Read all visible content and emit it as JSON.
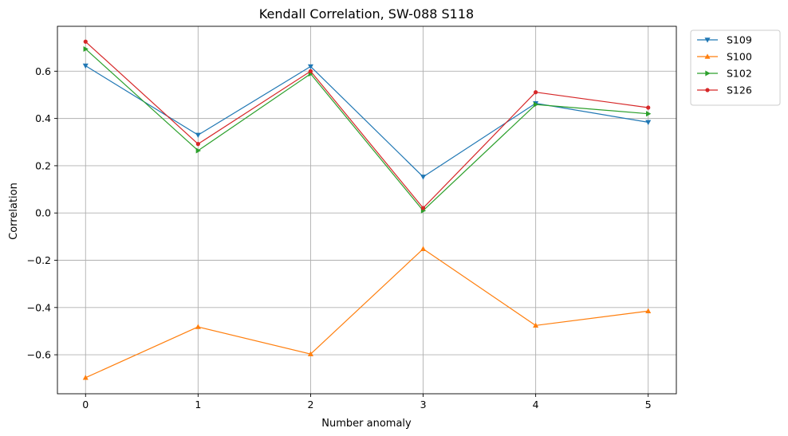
{
  "chart_data": {
    "type": "line",
    "title": "Kendall Correlation, SW-088  S118",
    "xlabel": "Number anomaly",
    "ylabel": "Correlation",
    "x": [
      0,
      1,
      2,
      3,
      4,
      5
    ],
    "xticks": [
      "0",
      "1",
      "2",
      "3",
      "4",
      "5"
    ],
    "yticks": [
      -0.6,
      -0.4,
      -0.2,
      0.0,
      0.2,
      0.4,
      0.6
    ],
    "ytick_labels": [
      "−0.6",
      "−0.4",
      "−0.2",
      "0.0",
      "0.2",
      "0.4",
      "0.6"
    ],
    "xlim": [
      -0.25,
      5.25
    ],
    "ylim": [
      -0.765,
      0.79
    ],
    "grid": true,
    "legend_position": "outside-top-right",
    "series": [
      {
        "name": "S109",
        "color": "#1f77b4",
        "marker": "triangle-down",
        "values": [
          0.623,
          0.33,
          0.62,
          0.153,
          0.464,
          0.384
        ]
      },
      {
        "name": "S100",
        "color": "#ff7f0e",
        "marker": "triangle-up",
        "values": [
          -0.697,
          -0.482,
          -0.597,
          -0.152,
          -0.476,
          -0.415
        ]
      },
      {
        "name": "S102",
        "color": "#2ca02c",
        "marker": "triangle-right",
        "values": [
          0.694,
          0.264,
          0.589,
          0.01,
          0.459,
          0.42
        ]
      },
      {
        "name": "S126",
        "color": "#d62728",
        "marker": "circle",
        "values": [
          0.725,
          0.292,
          0.6,
          0.021,
          0.511,
          0.446
        ]
      }
    ]
  }
}
